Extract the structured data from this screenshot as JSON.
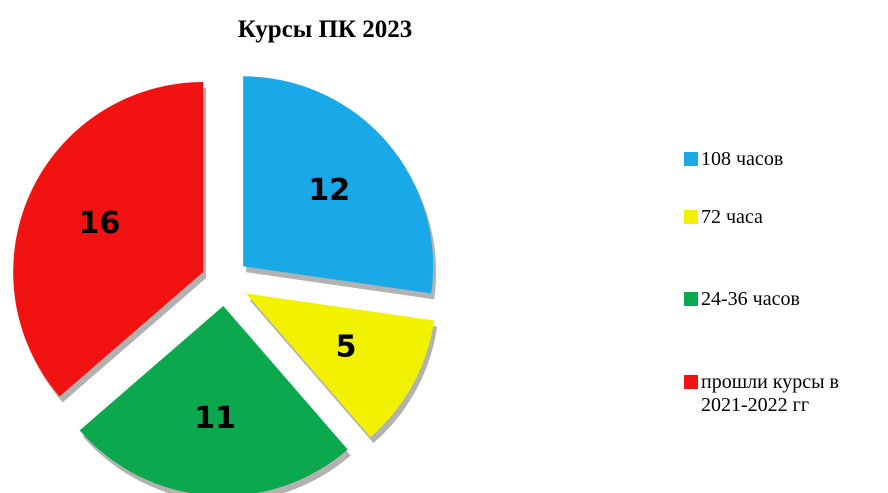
{
  "chart_data": {
    "type": "pie",
    "title": "Курсы ПК 2023",
    "categories": [
      "108 часов",
      "72 часа",
      "24-36 часов",
      "прошли курсы в 2021-2022 гг"
    ],
    "values": [
      12,
      5,
      11,
      16
    ],
    "colors": [
      "#19a9e8",
      "#f2f200",
      "#0ba84e",
      "#f21212"
    ],
    "legend": "right"
  }
}
